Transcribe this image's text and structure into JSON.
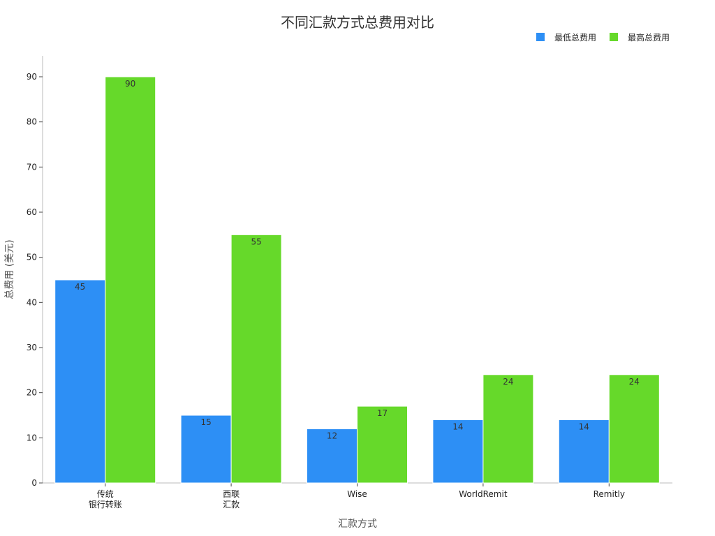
{
  "chart_data": {
    "type": "bar",
    "title": "不同汇款方式总费用对比",
    "xlabel": "汇款方式",
    "ylabel": "总费用 (美元)",
    "categories": [
      [
        "传统",
        "银行转账"
      ],
      [
        "西联",
        "汇款"
      ],
      [
        "Wise"
      ],
      [
        "WorldRemit"
      ],
      [
        "Remitly"
      ]
    ],
    "series": [
      {
        "name": "最低总费用",
        "color": "#2d8ff5",
        "values": [
          45,
          15,
          12,
          14,
          14
        ]
      },
      {
        "name": "最高总费用",
        "color": "#66d92a",
        "values": [
          90,
          55,
          17,
          24,
          24
        ]
      }
    ],
    "ylim": [
      0,
      90
    ],
    "yticks": [
      0,
      10,
      20,
      30,
      40,
      50,
      60,
      70,
      80,
      90
    ],
    "grid": false,
    "legend_position": "top-right"
  }
}
